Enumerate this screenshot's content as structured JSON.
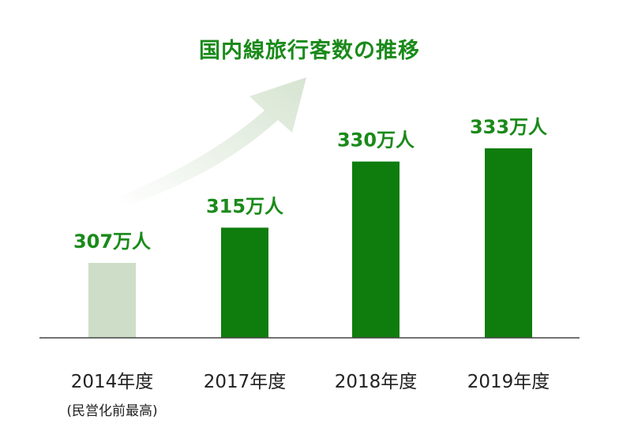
{
  "colors": {
    "highlight_bar": "#cdddc8",
    "bar": "#0e7d0e",
    "label": "#1a8a1a",
    "axis": "#444444",
    "tick_text": "#222222",
    "arrow": "#d6e4d1"
  },
  "chart_data": {
    "type": "bar",
    "title": "国内線旅行客数の推移",
    "categories": [
      "2014年度",
      "2017年度",
      "2018年度",
      "2019年度"
    ],
    "category_notes": [
      "(民営化前最高)",
      "",
      "",
      ""
    ],
    "values": [
      307,
      315,
      330,
      333
    ],
    "data_labels": [
      "307万人",
      "315万人",
      "330万人",
      "333万人"
    ],
    "unit": "万人",
    "ylim": [
      290,
      338
    ],
    "grid": false,
    "legend": "none"
  }
}
